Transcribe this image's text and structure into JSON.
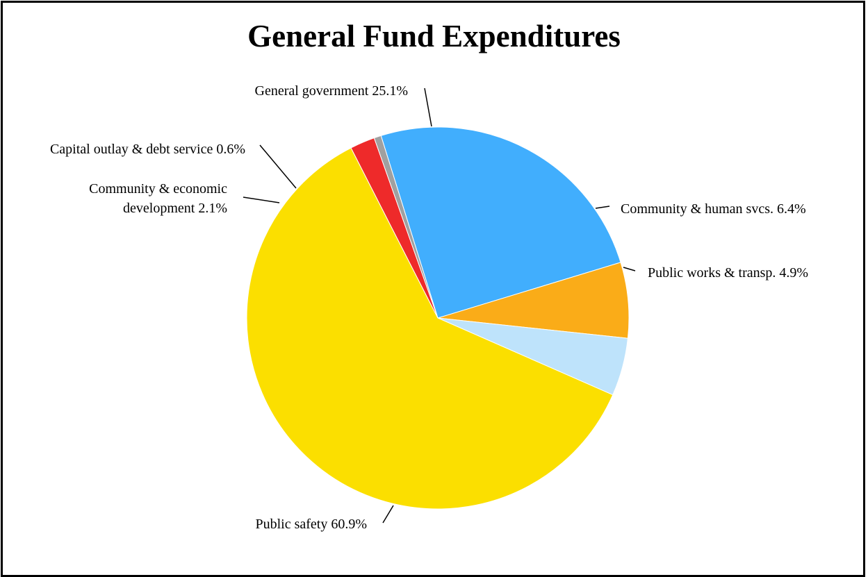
{
  "chart_data": {
    "type": "pie",
    "title": "General Fund Expenditures",
    "slices": [
      {
        "label": "General government 25.1%",
        "lines": [
          "General government 25.1%"
        ],
        "value": 25.1,
        "color": "#41AEFD"
      },
      {
        "label": "Community & human svcs. 6.4%",
        "lines": [
          "Community & human svcs. 6.4%"
        ],
        "value": 6.4,
        "color": "#FAAC18"
      },
      {
        "label": "Public works & transp. 4.9%",
        "lines": [
          "Public works & transp. 4.9%"
        ],
        "value": 4.9,
        "color": "#BEE3FB"
      },
      {
        "label": "Public safety 60.9%",
        "lines": [
          "Public safety 60.9%"
        ],
        "value": 60.9,
        "color": "#FBDF00"
      },
      {
        "label": "Community & economic development 2.1%",
        "lines": [
          "Community & economic",
          "development 2.1%"
        ],
        "value": 2.1,
        "color": "#EE2A2A"
      },
      {
        "label": "Capital outlay & debt service 0.6%",
        "lines": [
          "Capital outlay & debt service 0.6%"
        ],
        "value": 0.6,
        "color": "#A0A0A0"
      }
    ]
  }
}
